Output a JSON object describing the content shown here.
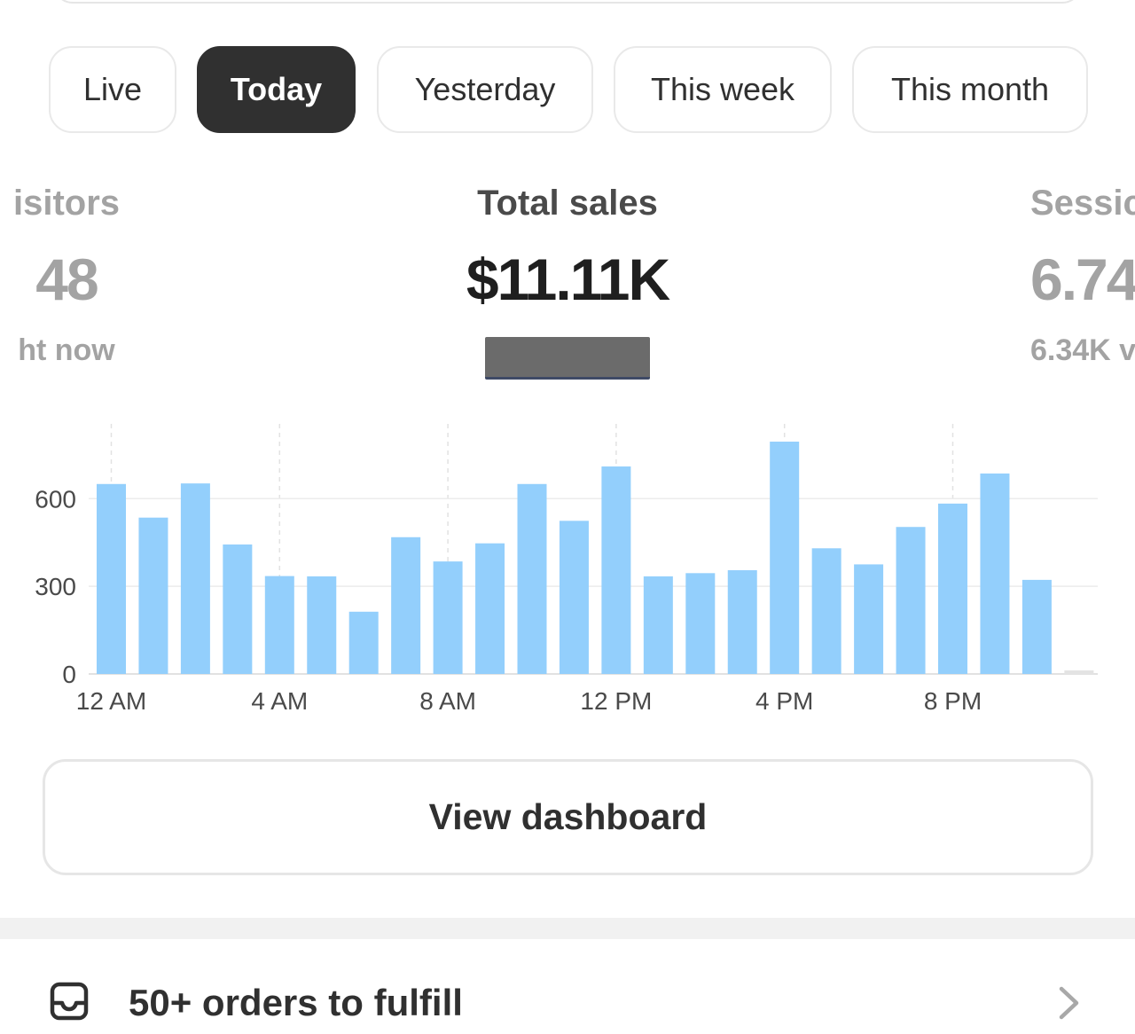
{
  "tabs": [
    {
      "label": "Live",
      "active": false
    },
    {
      "label": "Today",
      "active": true
    },
    {
      "label": "Yesterday",
      "active": false
    },
    {
      "label": "This week",
      "active": false
    },
    {
      "label": "This month",
      "active": false
    }
  ],
  "metrics": {
    "left": {
      "label": "isitors",
      "value": "48",
      "sub": "ht now"
    },
    "center": {
      "label": "Total sales",
      "value": "$11.11K"
    },
    "right": {
      "label": "Sessic",
      "value": "6.74",
      "sub": "6.34K v"
    }
  },
  "chart_data": {
    "type": "bar",
    "categories": [
      "12 AM",
      "1 AM",
      "2 AM",
      "3 AM",
      "4 AM",
      "5 AM",
      "6 AM",
      "7 AM",
      "8 AM",
      "9 AM",
      "10 AM",
      "11 AM",
      "12 PM",
      "1 PM",
      "2 PM",
      "3 PM",
      "4 PM",
      "5 PM",
      "6 PM",
      "7 PM",
      "8 PM",
      "9 PM",
      "10 PM",
      "11 PM"
    ],
    "values": [
      650,
      535,
      652,
      443,
      335,
      334,
      213,
      468,
      385,
      447,
      650,
      524,
      710,
      334,
      345,
      355,
      795,
      430,
      375,
      503,
      583,
      686,
      322,
      0
    ],
    "x_tick_labels": [
      "12 AM",
      "4 AM",
      "8 AM",
      "12 PM",
      "4 PM",
      "8 PM"
    ],
    "y_ticks": [
      0,
      300,
      600
    ],
    "ylim": [
      0,
      880
    ],
    "bar_color": "#93cffc",
    "grid": true
  },
  "dashboard_button": {
    "label": "View dashboard"
  },
  "task": {
    "label": "50+ orders to fulfill",
    "icon": "inbox-icon",
    "chevron": "chevron-right-icon"
  }
}
